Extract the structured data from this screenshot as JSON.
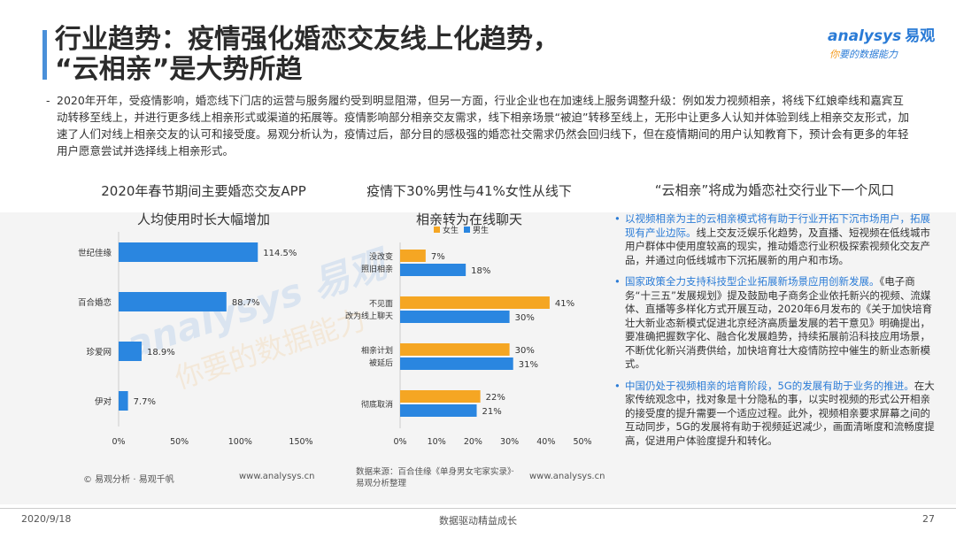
{
  "title": {
    "line1": "行业趋势：疫情强化婚恋交友线上化趋势，",
    "line2": "“云相亲”是大势所趋"
  },
  "logo": {
    "main": "analysys",
    "main_cn": "易观",
    "tag_first": "你",
    "tag_rest": "要的数据能力"
  },
  "intro": {
    "dash": "-",
    "text": "2020年开年，受疫情影响，婚恋线下门店的运营与服务履约受到明显阻滞，但另一方面，行业企业也在加速线上服务调整升级：例如发力视频相亲，将线下红娘牵线和嘉宾互动转移至线上，并进行更多线上相亲形式或渠道的拓展等。疫情影响部分相亲交友需求，线下相亲场景“被迫”转移至线上，无形中让更多人认知并体验到线上相亲交友形式，加速了人们对线上相亲交友的认可和接受度。易观分析认为，疫情过后，部分目的感极强的婚恋社交需求仍然会回归线下，但在疫情期间的用户认知教育下，预计会有更多的年轻用户愿意尝试并选择线上相亲形式。"
  },
  "chart1": {
    "title_line1": "2020年春节期间主要婚恋交友APP",
    "title_line2": "人均使用时长大幅增加"
  },
  "chart2": {
    "title_line1": "疫情下30%男性与41%女性从线下",
    "title_line2": "相亲转为在线聊天"
  },
  "chart_data": [
    {
      "type": "bar",
      "orientation": "horizontal",
      "categories": [
        "世纪佳缘",
        "百合婚恋",
        "珍爱网",
        "伊对"
      ],
      "values": [
        114.5,
        88.7,
        18.9,
        7.7
      ],
      "value_labels": [
        "114.5%",
        "88.7%",
        "18.9%",
        "7.7%"
      ],
      "xlim": [
        0,
        150
      ],
      "ticks": [
        "0%",
        "50%",
        "100%",
        "150%"
      ],
      "color": "#2a86e0",
      "grid": false
    },
    {
      "type": "bar",
      "orientation": "horizontal",
      "categories": [
        [
          "没改变",
          "照旧相亲"
        ],
        [
          "不见面",
          "改为线上聊天"
        ],
        [
          "相亲计划",
          "被延后"
        ],
        [
          "彻底取消"
        ]
      ],
      "series": [
        {
          "name": "女生",
          "values": [
            7,
            41,
            30,
            22
          ],
          "labels": [
            "7%",
            "41%",
            "30%",
            "22%"
          ],
          "color": "#f5a623"
        },
        {
          "name": "男生",
          "values": [
            18,
            30,
            31,
            21
          ],
          "labels": [
            "18%",
            "30%",
            "31%",
            "21%"
          ],
          "color": "#2a86e0"
        }
      ],
      "xlim": [
        0,
        50
      ],
      "ticks": [
        "0%",
        "10%",
        "20%",
        "30%",
        "40%",
        "50%"
      ],
      "legend": "top-left",
      "grid": false
    }
  ],
  "right": {
    "title": "“云相亲”将成为婚恋社交行业下一个风口",
    "bullets": [
      {
        "dot": "•",
        "highlight": "以视频相亲为主的云相亲模式将有助于行业开拓下沉市场用户，拓展现有产业边际。",
        "text": "线上交友泛娱乐化趋势，及直播、短视频在低线城市用户群体中使用度较高的现实，推动婚恋行业积极探索视频化交友产品，并通过向低线城市下沉拓展新的用户和市场。"
      },
      {
        "dot": "•",
        "highlight": "国家政策全力支持科技型企业拓展新场景应用创新发展。",
        "text": "《电子商务“十三五”发展规划》提及鼓励电子商务企业依托新兴的视频、流媒体、直播等多样化方式开展互动，2020年6月发布的《关于加快培育壮大新业态新模式促进北京经济高质量发展的若干意见》明确提出，要准确把握数字化、融合化发展趋势，持续拓展前沿科技应用场景，不断优化新兴消费供给，加快培育壮大疫情防控中催生的新业态新模式。"
      },
      {
        "dot": "•",
        "highlight": "中国仍处于视频相亲的培育阶段，5G的发展有助于业务的推进。",
        "text": "在大家传统观念中，找对象是十分隐私的事，以实时视频的形式公开相亲的接受度的提升需要一个适应过程。此外，视频相亲要求屏幕之间的互动同步，5G的发展将有助于视频延迟减少，画面清晰度和流畅度提高，促进用户体验度提升和转化。"
      }
    ]
  },
  "sources": {
    "left": "© 易观分析 · 易观千帆",
    "left_url": "www.analysys.cn",
    "mid_line1": "数据来源：百合佳缘《单身男女宅家实录》·",
    "mid_line2": "易观分析整理",
    "mid_url": "www.analysys.cn"
  },
  "footer": {
    "date": "2020/9/18",
    "center": "数据驱动精益成长",
    "page": "27"
  }
}
